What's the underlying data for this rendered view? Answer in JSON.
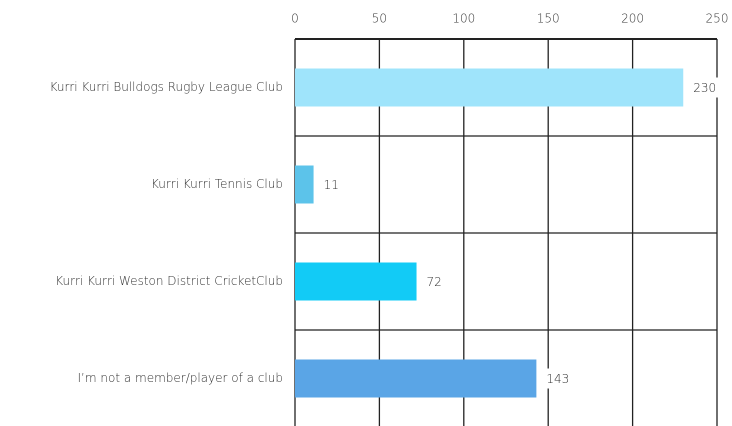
{
  "chart_data": {
    "type": "barh",
    "categories": [
      "Kurri Kurri Bulldogs Rugby League Club",
      "Kurri Kurri Tennis Club",
      "Kurri Kurri Weston District CricketClub",
      "I’m  not a member/player of a club"
    ],
    "values": [
      230,
      11,
      72,
      143
    ],
    "colors": [
      "#9fe4fb",
      "#5cc3ea",
      "#12cbf6",
      "#5aa5e6"
    ],
    "xlim": [
      0,
      250
    ],
    "xticks": [
      0,
      50,
      100,
      150,
      200,
      250
    ],
    "grid": true
  }
}
